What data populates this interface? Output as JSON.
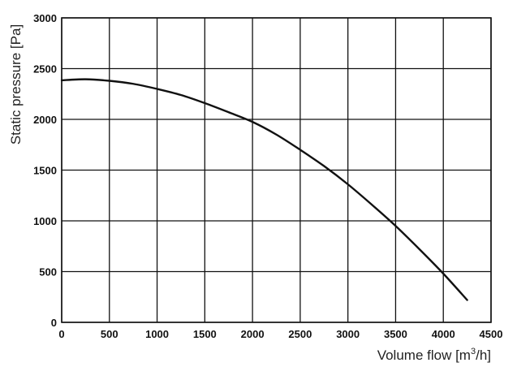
{
  "chart_data": {
    "type": "line",
    "title": "",
    "xlabel": "Volume flow [m",
    "xlabel_sup": "3",
    "xlabel_suffix": "/h]",
    "ylabel": "Static pressure [Pa]",
    "xlim": [
      0,
      4500
    ],
    "ylim": [
      0,
      3000
    ],
    "grid": true,
    "x_ticks": [
      0,
      500,
      1000,
      1500,
      2000,
      2500,
      3000,
      3500,
      4000,
      4500
    ],
    "y_ticks": [
      0,
      500,
      1000,
      1500,
      2000,
      2500,
      3000
    ],
    "x_tick_labels": [
      "0",
      "500",
      "1000",
      "1500",
      "2000",
      "2500",
      "3000",
      "3500",
      "4000",
      "4500"
    ],
    "y_tick_labels": [
      "0",
      "500",
      "1000",
      "1500",
      "2000",
      "2500",
      "3000"
    ],
    "series": [
      {
        "color": "#111111",
        "x": [
          0,
          250,
          500,
          750,
          1000,
          1250,
          1500,
          1750,
          2000,
          2250,
          2500,
          2750,
          3000,
          3250,
          3500,
          3750,
          4000,
          4250
        ],
        "y": [
          2385,
          2395,
          2380,
          2350,
          2300,
          2240,
          2160,
          2070,
          1975,
          1850,
          1700,
          1540,
          1360,
          1160,
          950,
          720,
          480,
          220
        ]
      }
    ]
  }
}
